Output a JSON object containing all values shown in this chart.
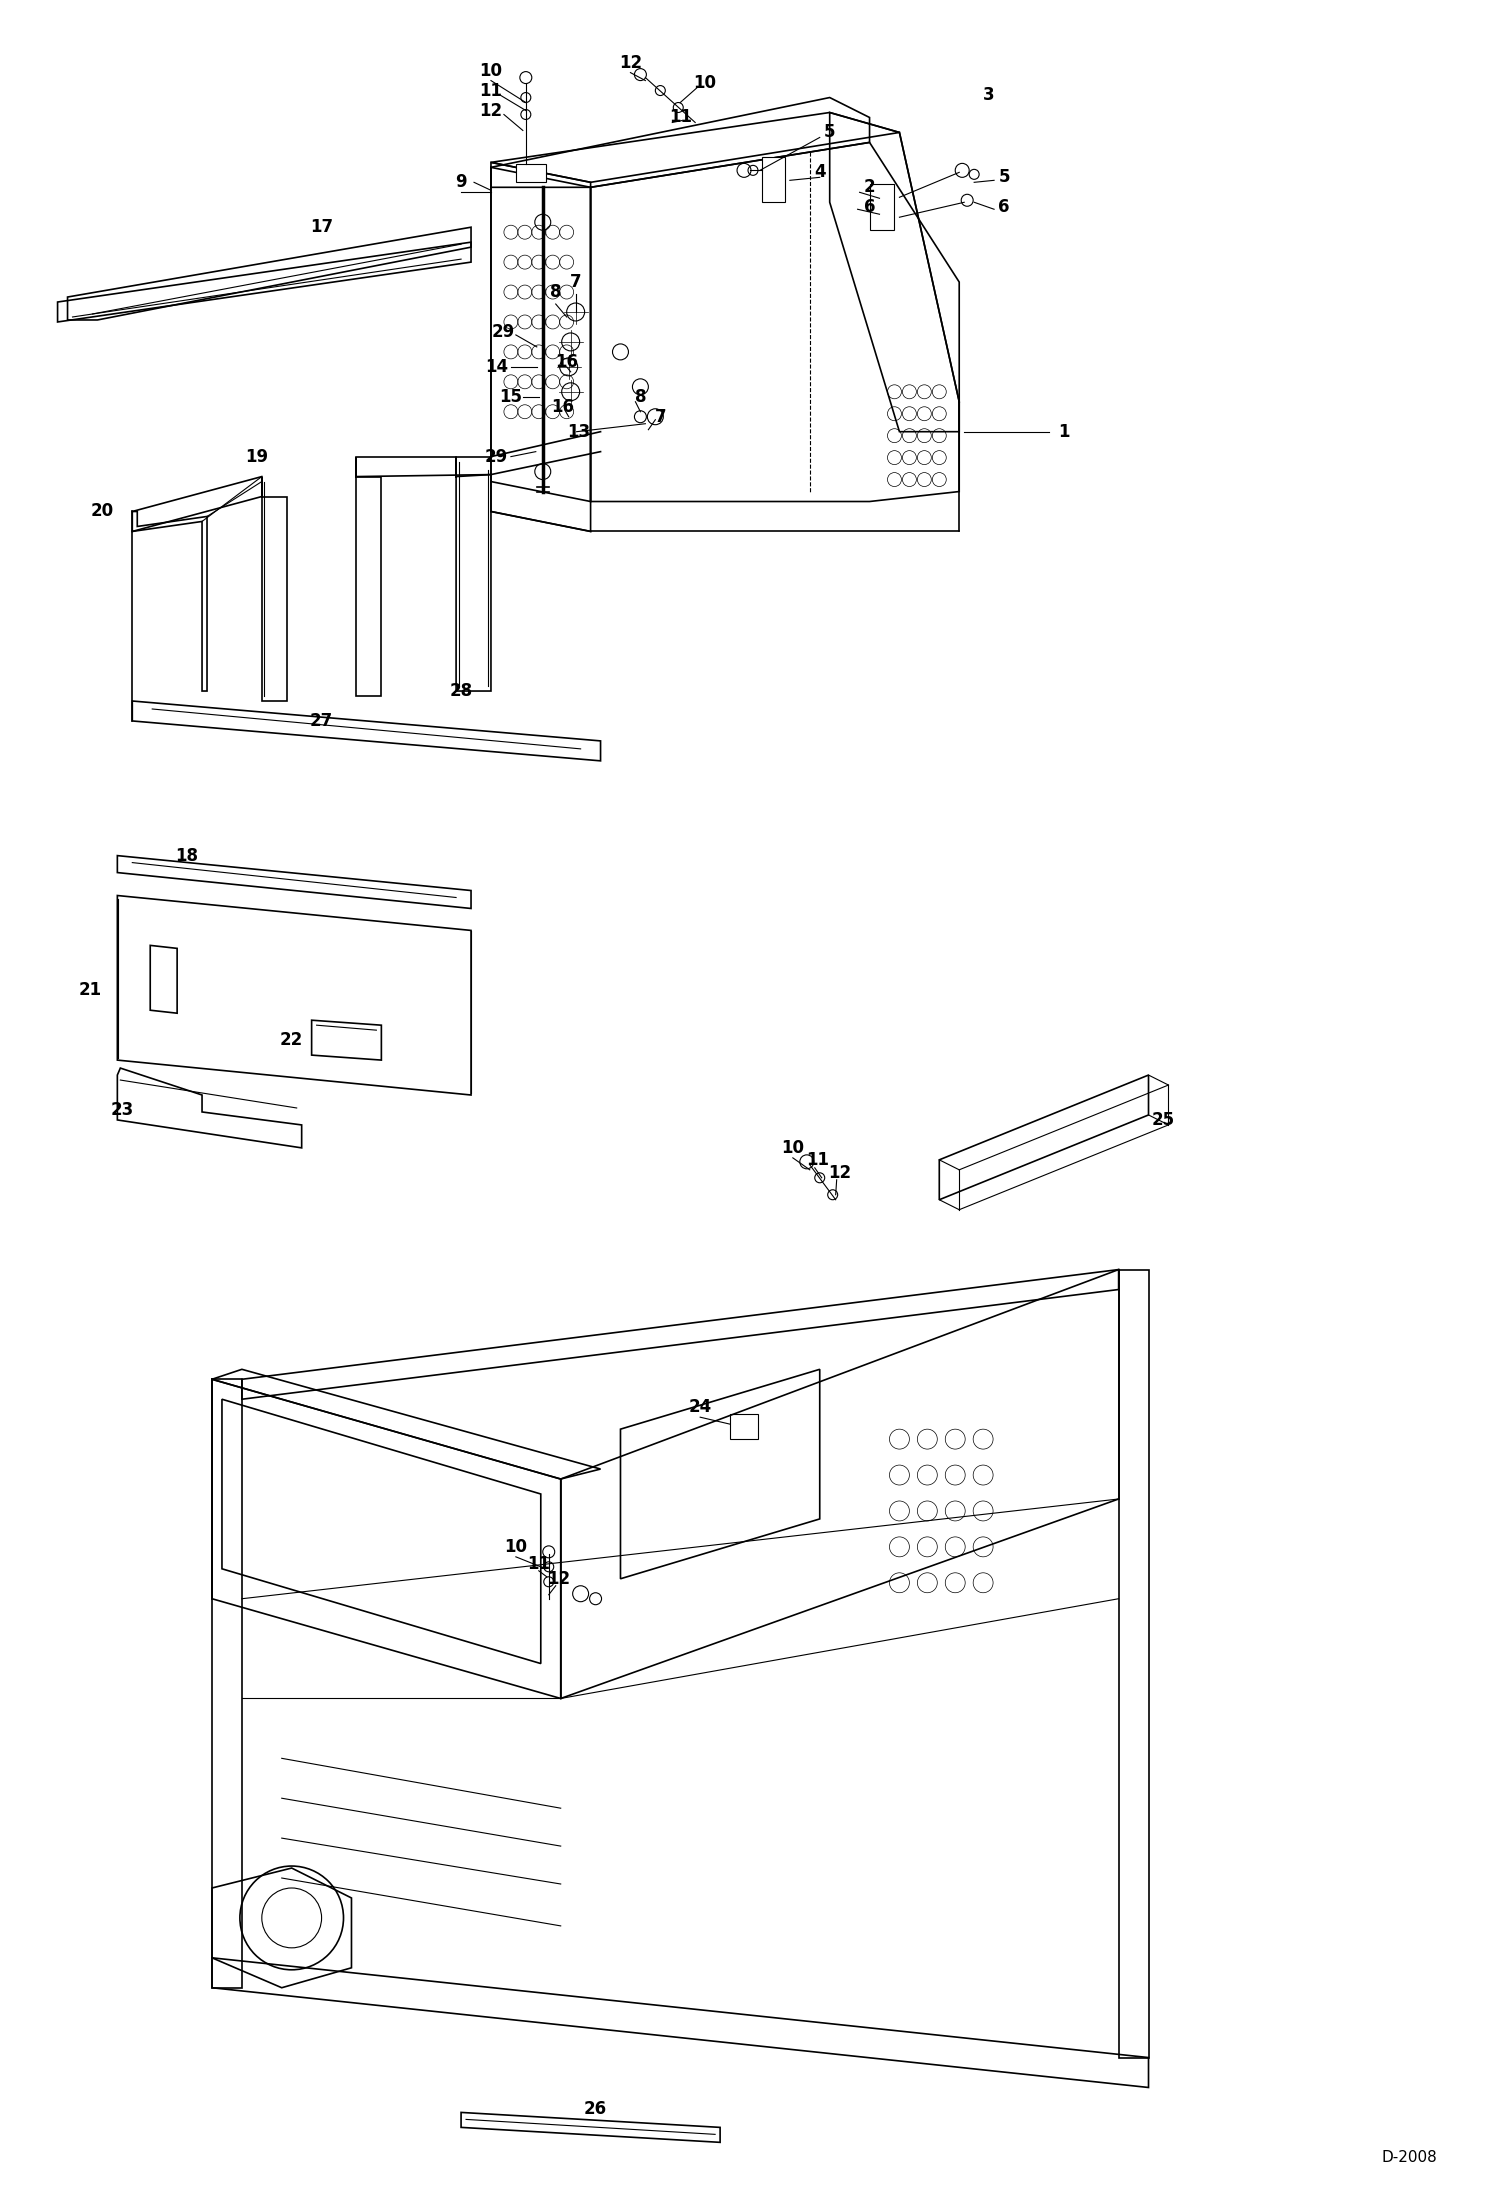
{
  "bg_color": "#ffffff",
  "line_color": "#000000",
  "figure_width": 14.98,
  "figure_height": 21.94,
  "dpi": 100
}
